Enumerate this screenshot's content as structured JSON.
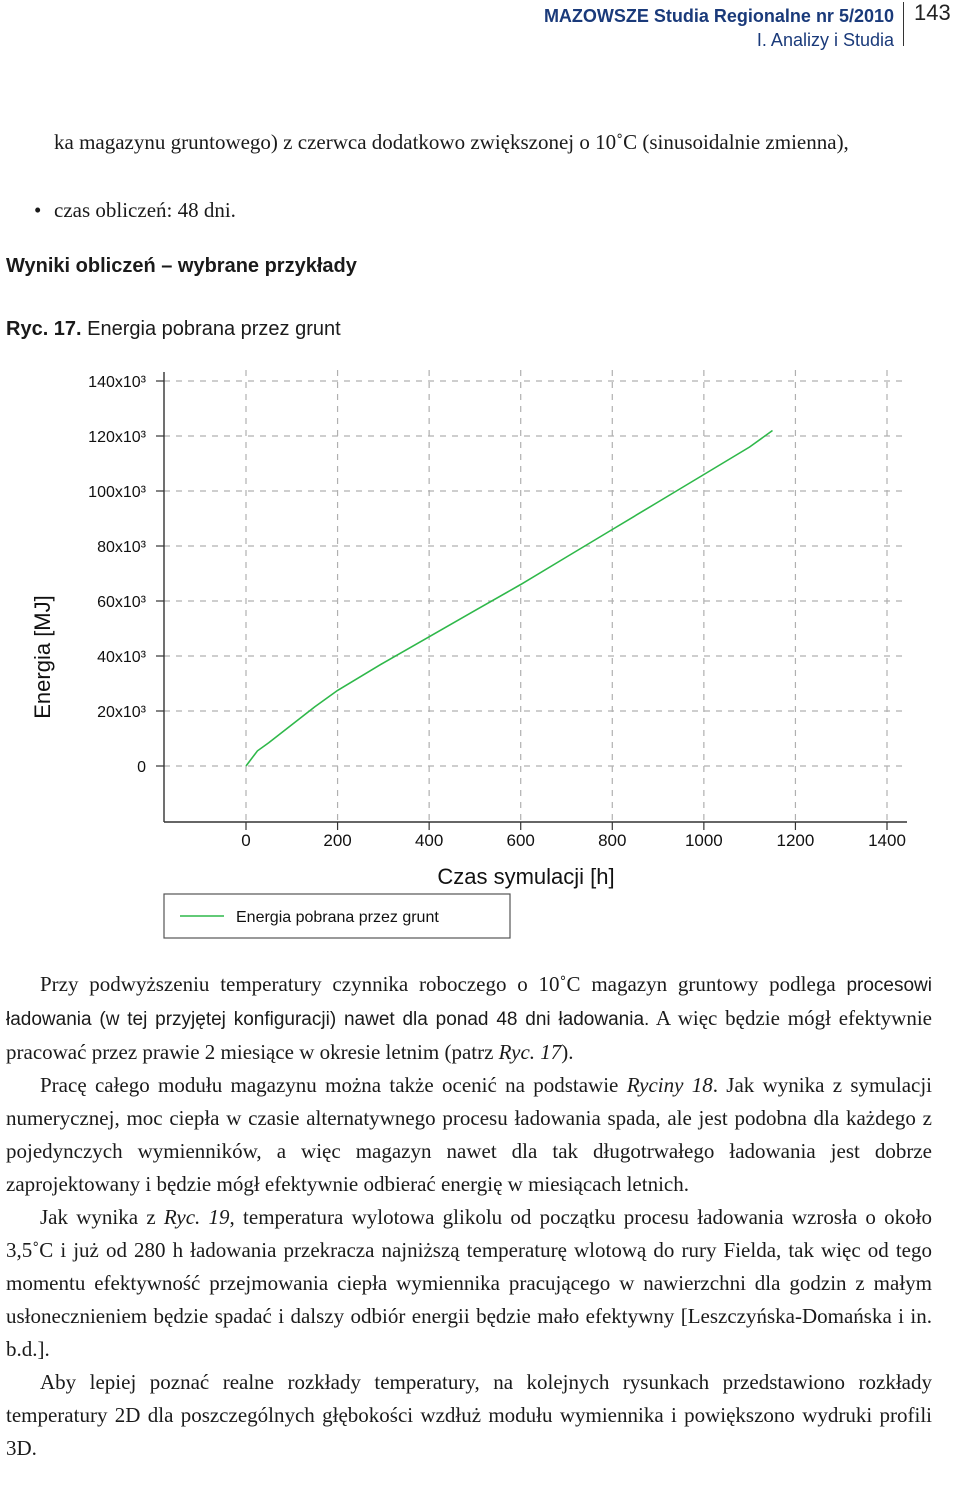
{
  "header": {
    "journal_line1": "MAZOWSZE Studia Regionalne nr 5/2010",
    "journal_line2": "I. Analizy i Studia",
    "page_number": "143"
  },
  "intro": {
    "continuation": "ka magazynu gruntowego) z czerwca dodatkowo zwiększonej o 10˚C (sinusoidalnie zmienna),",
    "bullet": "czas obliczeń: 48 dni."
  },
  "section_heading": "Wyniki obliczeń – wybrane przykłady",
  "figure": {
    "label": "Ryc. 17.",
    "caption": "Energia pobrana przez grunt"
  },
  "chart_data": {
    "type": "line",
    "xlabel": "Czas symulacji [h]",
    "ylabel": "Energia [MJ]",
    "xlim": [
      0,
      1400
    ],
    "ylim": [
      0,
      140000
    ],
    "x_ticks": [
      "0",
      "200",
      "400",
      "600",
      "800",
      "1000",
      "1200",
      "1400"
    ],
    "y_ticks": [
      "0",
      "20x10³",
      "40x10³",
      "60x10³",
      "80x10³",
      "100x10³",
      "120x10³",
      "140x10³"
    ],
    "grid": true,
    "legend_position": "bottom",
    "series": [
      {
        "name": "Energia pobrana przez grunt",
        "color": "#2fb84a",
        "x": [
          0,
          25,
          50,
          100,
          150,
          200,
          300,
          400,
          500,
          600,
          700,
          800,
          900,
          1000,
          1100,
          1150
        ],
        "y": [
          0,
          5500,
          8500,
          15000,
          21500,
          27500,
          37500,
          47000,
          56500,
          66000,
          76000,
          86000,
          96000,
          106000,
          116000,
          122000
        ]
      }
    ]
  },
  "body": {
    "p1_a": "Przy podwyższeniu temperatury czynnika roboczego o 10˚C magazyn gruntowy podlega ",
    "p1_b": "procesowi ładowania (w tej przyjętej konfiguracji) nawet dla ponad 48 dni ładowania.",
    "p1_c": " A więc będzie mógł efektywnie pracować przez prawie 2 miesiące w okresie letnim (patrz ",
    "p1_ref": "Ryc. 17",
    "p1_d": ").",
    "p2_a": "Pracę całego modułu magazynu można także ocenić na podstawie ",
    "p2_ref": "Ryciny 18",
    "p2_b": ". Jak wynika z symulacji numerycznej, moc ciepła w czasie alternatywnego procesu ładowania spada, ale jest podobna dla każdego z pojedynczych wymienników, a więc magazyn nawet dla tak długotrwałego ładowania jest dobrze zaprojektowany i będzie mógł efektywnie odbierać energię w miesiącach letnich.",
    "p3_a": "Jak wynika z ",
    "p3_ref": "Ryc. 19",
    "p3_b": ", temperatura wylotowa glikolu od początku procesu ładowania wzrosła o około 3,5˚C i już od 280 h ładowania przekracza najniższą temperaturę wlotową do rury Fielda, tak więc od tego momentu efektywność przejmowania ciepła wymiennika pracującego w nawierzchni dla godzin z małym usłonecznieniem będzie spadać i dalszy odbiór energii będzie mało efektywny [Leszczyńska-Domańska i in. b.d.].",
    "p4": "Aby lepiej poznać realne rozkłady temperatury, na kolejnych rysunkach przedstawiono rozkłady temperatury 2D dla poszczególnych głębokości wzdłuż modułu wymiennika i powiększono wydruki profili 3D."
  }
}
